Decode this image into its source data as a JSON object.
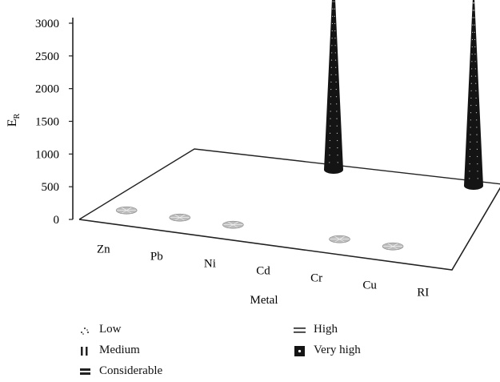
{
  "chart_data": {
    "type": "bar",
    "title": "",
    "xlabel": "Metal",
    "ylabel": "E",
    "ylabel_sub": "R",
    "ylim": [
      0,
      3000
    ],
    "yticks": [
      0,
      500,
      1000,
      1500,
      2000,
      2500,
      3000
    ],
    "categories": [
      "Zn",
      "Pb",
      "Ni",
      "Cd",
      "Cr",
      "Cu",
      "RI"
    ],
    "depth_series_present": [
      "front",
      "back"
    ],
    "series": [
      {
        "values": [
          2,
          2,
          3,
          null,
          5,
          6,
          3130
        ]
      },
      {
        "values": [
          null,
          null,
          null,
          3130,
          null,
          null,
          null
        ]
      }
    ],
    "legend": [
      {
        "label": "Low",
        "pattern": "dots"
      },
      {
        "label": "Medium",
        "pattern": "vertical-lines"
      },
      {
        "label": "Considerable",
        "pattern": "horizontal-bars"
      },
      {
        "label": "High",
        "pattern": "double-lines"
      },
      {
        "label": "Very high",
        "pattern": "black-with-dot"
      }
    ],
    "colors": {
      "cone_dark": "#141414",
      "disc_light": "#bdbdbd",
      "axis": "#222222"
    }
  }
}
